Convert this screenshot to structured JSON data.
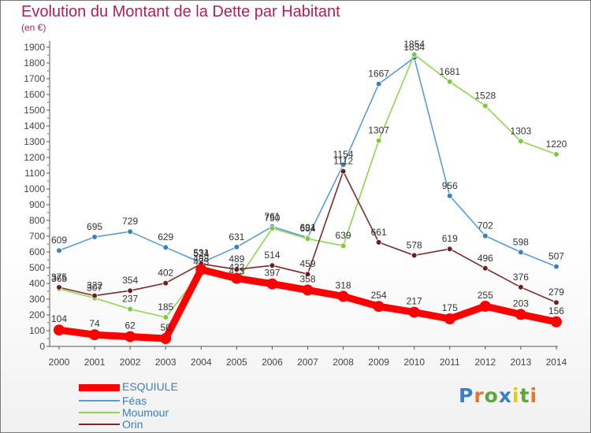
{
  "header": {
    "title": "Evolution du Montant de la Dette par Habitant",
    "subtitle": "(en €)"
  },
  "logo": {
    "text": "Proxiti",
    "colors": [
      "#3b80c6",
      "#e9762b",
      "#5aa83c",
      "#3b80c6",
      "#e3c91e",
      "#5aa83c",
      "#e9762b"
    ]
  },
  "colors": {
    "title": "#b41d5b",
    "axis": "#555555",
    "grid": "#e3e3e3",
    "frame": "#7a7a7a"
  },
  "chart_data": {
    "type": "line",
    "title": "Evolution du Montant de la Dette par Habitant",
    "subtitle": "(en €)",
    "xlabel": "",
    "ylabel": "",
    "x": [
      2000,
      2001,
      2002,
      2003,
      2004,
      2005,
      2006,
      2007,
      2008,
      2009,
      2010,
      2011,
      2012,
      2013,
      2014
    ],
    "ylim": [
      0,
      1900
    ],
    "yticks": [
      0,
      100,
      200,
      300,
      400,
      500,
      600,
      700,
      800,
      900,
      1000,
      1100,
      1200,
      1300,
      1400,
      1500,
      1600,
      1700,
      1800,
      1900
    ],
    "grid": false,
    "legend_position": "bottom-left",
    "series": [
      {
        "name": "Féas",
        "color": "#5b9bd5",
        "marker": "#3a7fc0",
        "values": [
          609,
          695,
          729,
          629,
          531,
          631,
          761,
          691,
          1154,
          1667,
          1834,
          956,
          702,
          598,
          507
        ]
      },
      {
        "name": "Moumour",
        "color": "#8ed650",
        "marker": "#7cc93e",
        "values": [
          365,
          307,
          237,
          185,
          473,
          413,
          750,
          684,
          639,
          1307,
          1854,
          1681,
          1528,
          1303,
          1220
        ]
      },
      {
        "name": "Orin",
        "color": "#7b2a2a",
        "marker": "#6b1f1f",
        "values": [
          375,
          322,
          354,
          402,
          524,
          489,
          514,
          459,
          1112,
          661,
          578,
          619,
          496,
          376,
          279
        ]
      },
      {
        "name": "ESQUIULE",
        "color": "#ff0000",
        "marker": "#ff0000",
        "bold": true,
        "values": [
          104,
          74,
          62,
          50,
          488,
          432,
          397,
          358,
          318,
          254,
          217,
          175,
          255,
          203,
          156
        ]
      }
    ],
    "legend_order": [
      "ESQUIULE",
      "Féas",
      "Moumour",
      "Orin"
    ]
  }
}
